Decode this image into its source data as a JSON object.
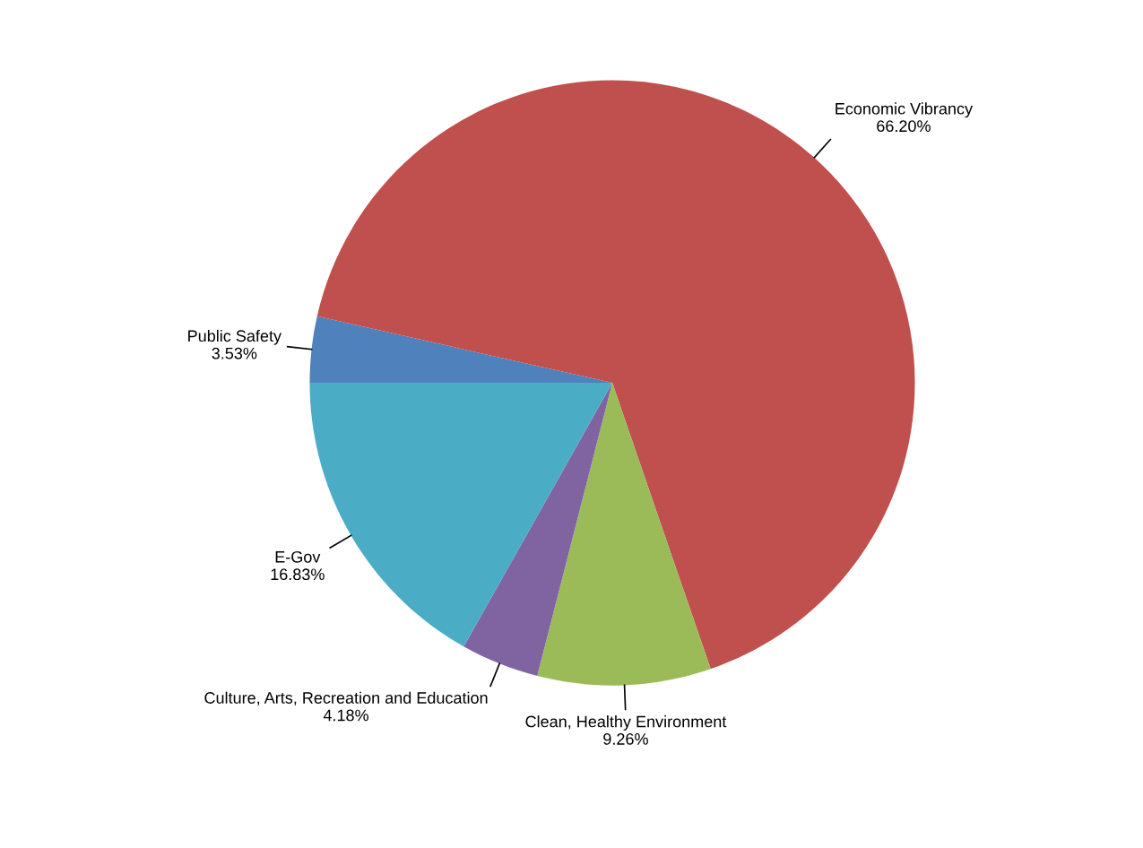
{
  "chart_data": {
    "type": "pie",
    "categories": [
      "Public Safety",
      "Economic Vibrancy",
      "Clean, Healthy Environment",
      "Culture, Arts, Recreation and Education",
      "E-Gov"
    ],
    "values": [
      3.53,
      66.2,
      9.26,
      4.18,
      16.83
    ],
    "value_labels": [
      "3.53%",
      "66.20%",
      "9.26%",
      "4.18%",
      "16.83%"
    ],
    "colors": [
      "#4f81bd",
      "#c0504d",
      "#9bbb59",
      "#8064a2",
      "#4bacc6"
    ]
  }
}
